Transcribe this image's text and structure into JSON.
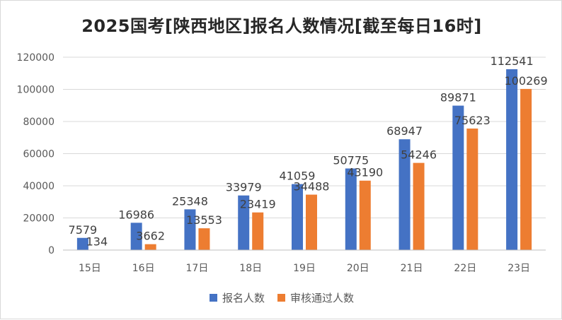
{
  "chart_data": {
    "type": "bar",
    "title": "2025国考[陕西地区]报名人数情况[截至每日16时]",
    "categories": [
      "15日",
      "16日",
      "17日",
      "18日",
      "19日",
      "20日",
      "21日",
      "22日",
      "23日"
    ],
    "series": [
      {
        "name": "报名人数",
        "color": "#4472C4",
        "values": [
          7579,
          16986,
          25348,
          33979,
          41059,
          50775,
          68947,
          89871,
          112541
        ]
      },
      {
        "name": "审核通过人数",
        "color": "#ED7D31",
        "values": [
          134,
          3662,
          13553,
          23419,
          34488,
          43190,
          54246,
          75623,
          100269
        ]
      }
    ],
    "ylim": [
      0,
      120000
    ],
    "yticks": [
      0,
      20000,
      40000,
      60000,
      80000,
      100000,
      120000
    ],
    "grid": true,
    "legend": "bottom"
  }
}
